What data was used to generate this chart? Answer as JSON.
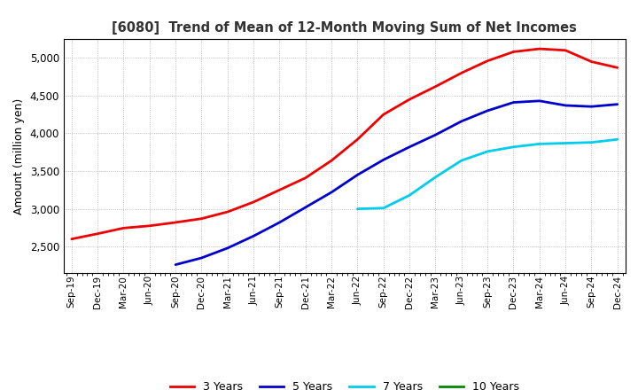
{
  "title": "[6080]  Trend of Mean of 12-Month Moving Sum of Net Incomes",
  "ylabel": "Amount (million yen)",
  "background_color": "#ffffff",
  "plot_bg_color": "#ffffff",
  "grid_color": "#999999",
  "ylim": [
    2150,
    5250
  ],
  "yticks": [
    2500,
    3000,
    3500,
    4000,
    4500,
    5000
  ],
  "x_labels": [
    "Sep-19",
    "Dec-19",
    "Mar-20",
    "Jun-20",
    "Sep-20",
    "Dec-20",
    "Mar-21",
    "Jun-21",
    "Sep-21",
    "Dec-21",
    "Mar-22",
    "Jun-22",
    "Sep-22",
    "Dec-22",
    "Mar-23",
    "Jun-23",
    "Sep-23",
    "Dec-23",
    "Mar-24",
    "Jun-24",
    "Sep-24",
    "Dec-24"
  ],
  "series": {
    "3 Years": {
      "color": "#ee0000",
      "data_x": [
        0,
        1,
        2,
        3,
        4,
        5,
        6,
        7,
        8,
        9,
        10,
        11,
        12,
        13,
        14,
        15,
        16,
        17,
        18,
        19,
        20,
        21
      ],
      "data_y": [
        2600,
        2670,
        2745,
        2775,
        2820,
        2870,
        2960,
        3090,
        3250,
        3410,
        3640,
        3920,
        4250,
        4450,
        4620,
        4800,
        4960,
        5080,
        5120,
        5100,
        4950,
        4870
      ]
    },
    "5 Years": {
      "color": "#0000cc",
      "data_x": [
        4,
        5,
        6,
        7,
        8,
        9,
        10,
        11,
        12,
        13,
        14,
        15,
        16,
        17,
        18,
        19,
        20,
        21
      ],
      "data_y": [
        2260,
        2350,
        2480,
        2640,
        2820,
        3020,
        3220,
        3450,
        3650,
        3820,
        3980,
        4160,
        4300,
        4410,
        4430,
        4370,
        4355,
        4385
      ]
    },
    "7 Years": {
      "color": "#00ccee",
      "data_x": [
        11,
        12,
        13,
        14,
        15,
        16,
        17,
        18,
        19,
        20,
        21
      ],
      "data_y": [
        3000,
        3010,
        3180,
        3420,
        3640,
        3760,
        3820,
        3860,
        3870,
        3880,
        3920
      ]
    },
    "10 Years": {
      "color": "#008800",
      "data_x": [],
      "data_y": []
    }
  },
  "legend_labels": [
    "3 Years",
    "5 Years",
    "7 Years",
    "10 Years"
  ],
  "legend_colors": [
    "#ee0000",
    "#0000cc",
    "#00ccee",
    "#008800"
  ]
}
